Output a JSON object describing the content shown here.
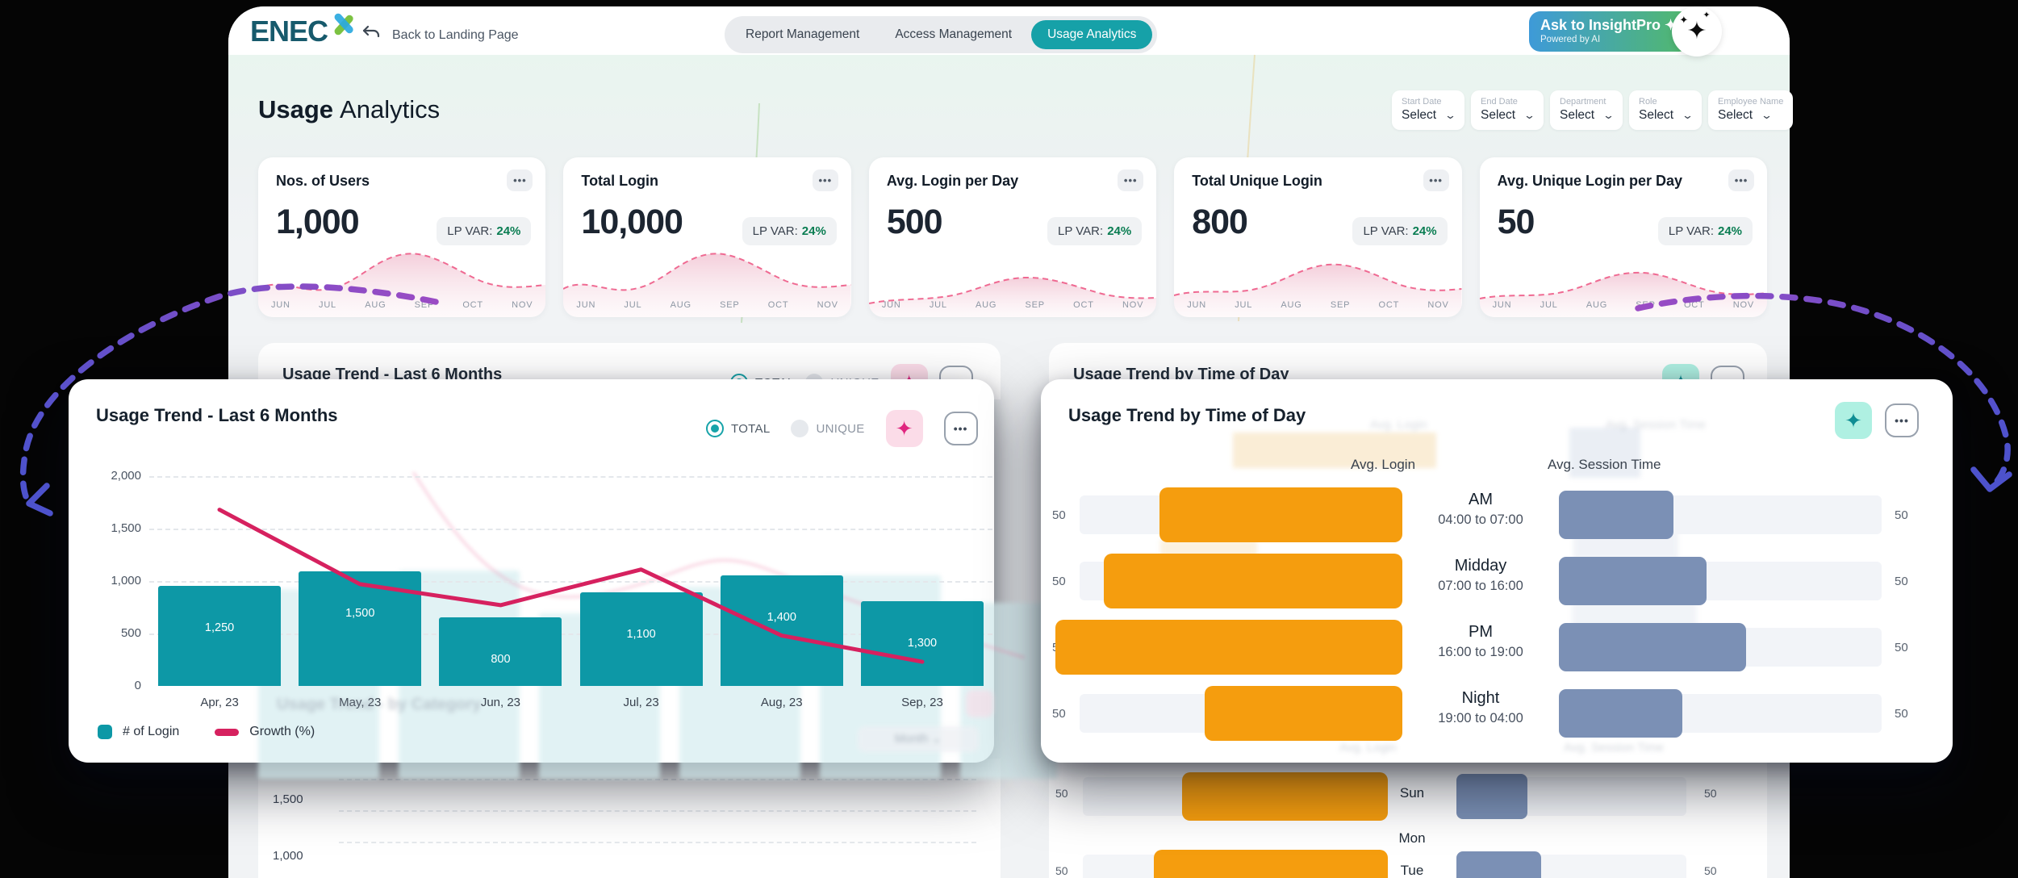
{
  "window": {
    "logo_text": "ENEC",
    "back_label": "Back to Landing Page"
  },
  "nav_tabs": [
    {
      "label": "Report Management",
      "active": false
    },
    {
      "label": "Access Management",
      "active": false
    },
    {
      "label": "Usage Analytics",
      "active": true
    }
  ],
  "ai_button": {
    "title": "Ask to InsightPro ✦",
    "subtitle": "Powered by AI"
  },
  "page_header": {
    "title_bold": "Usage",
    "title_regular": "Analytics"
  },
  "filters": [
    {
      "label": "Start Date",
      "value": "Select"
    },
    {
      "label": "End Date",
      "value": "Select"
    },
    {
      "label": "Department",
      "value": "Select"
    },
    {
      "label": "Role",
      "value": "Select"
    },
    {
      "label": "Employee Name",
      "value": "Select"
    }
  ],
  "kpi": {
    "lp_var_label": "LP VAR:",
    "lp_var_value": "24%",
    "ellipsis": "•••",
    "months": [
      "JUN",
      "JUL",
      "AUG",
      "SEP",
      "OCT",
      "NOV"
    ],
    "cards": [
      {
        "title": "Nos. of Users",
        "value": "1,000"
      },
      {
        "title": "Total Login",
        "value": "10,000"
      },
      {
        "title": "Avg. Login per Day",
        "value": "500"
      },
      {
        "title": "Total Unique Login",
        "value": "800"
      },
      {
        "title": "Avg. Unique Login per Day",
        "value": "50"
      }
    ]
  },
  "trend_popup": {
    "title": "Usage Trend - Last 6 Months",
    "radio_total": "TOTAL",
    "radio_unique": "UNIQUE",
    "sparkle_icon": "✦",
    "ellipsis": "•••",
    "y_ticks": [
      "2,000",
      "1,500",
      "1,000",
      "500",
      "0"
    ],
    "legend_bar": "# of Login",
    "legend_line": "Growth (%)"
  },
  "time_popup": {
    "title": "Usage Trend by Time of Day",
    "sparkle_icon": "✦",
    "ellipsis": "•••",
    "col_left": "Avg. Login",
    "col_right": "Avg. Session Time",
    "side_value": "50",
    "rows": [
      {
        "period": "AM",
        "range": "04:00 to 07:00"
      },
      {
        "period": "Midday",
        "range": "07:00 to 16:00"
      },
      {
        "period": "PM",
        "range": "16:00 to 19:00"
      },
      {
        "period": "Night",
        "range": "19:00 to 04:00"
      }
    ]
  },
  "background": {
    "row2_left_title": "Usage Trend - Last 6 Months",
    "row2_right_title": "Usage Trend by Time of Day",
    "row3_left_title": "Usage Trend - by Category",
    "month_dropdown": "Month ⌄",
    "y_labels": [
      "1,500",
      "1,000"
    ],
    "day_rows": [
      "Sun",
      "Mon",
      "Tue"
    ],
    "side_value": "50"
  },
  "chart_data": [
    {
      "type": "bar",
      "title": "Usage Trend - Last 6 Months",
      "categories": [
        "Apr, 23",
        "May, 23",
        "Jun, 23",
        "Jul, 23",
        "Aug, 23",
        "Sep, 23"
      ],
      "series": [
        {
          "name": "# of Login",
          "type": "bar",
          "color": "#0d98a6",
          "values": [
            1250,
            1500,
            800,
            1100,
            1400,
            1300
          ],
          "labels": [
            "1,250",
            "1,500",
            "800",
            "1,100",
            "1,400",
            "1,300"
          ],
          "bar_rendered_values": [
            950,
            1090,
            650,
            890,
            1050,
            810
          ]
        },
        {
          "name": "Growth (%)",
          "type": "line",
          "color": "#d6215f",
          "rendered_values": [
            1680,
            970,
            770,
            1110,
            480,
            230
          ]
        }
      ],
      "ylim": [
        0,
        2000
      ],
      "y_ticks": [
        0,
        500,
        1000,
        1500,
        2000
      ],
      "grid": "dashed-horizontal",
      "legend_position": "bottom-left"
    },
    {
      "type": "bar",
      "subtype": "bidirectional-horizontal",
      "title": "Usage Trend by Time of Day",
      "categories": [
        "AM 04:00 to 07:00",
        "Midday 07:00 to 16:00",
        "PM 16:00 to 19:00",
        "Night 19:00 to 04:00"
      ],
      "series": [
        {
          "name": "Avg. Login",
          "color": "#f59d0e",
          "direction": "left",
          "relative_lengths": [
            0.7,
            0.86,
            1.0,
            0.57
          ]
        },
        {
          "name": "Avg. Session Time",
          "color": "#7b90b5",
          "direction": "right",
          "relative_lengths": [
            0.61,
            0.79,
            1.0,
            0.66
          ]
        }
      ],
      "axis_value_left": "50",
      "axis_value_right": "50"
    },
    {
      "type": "area",
      "title": "KPI sparklines (JUN–NOV)",
      "categories": [
        "JUN",
        "JUL",
        "AUG",
        "SEP",
        "OCT",
        "NOV"
      ],
      "note": "pink dashed-outline area wave peaking near SEP, identical style on all five KPI cards"
    },
    {
      "type": "bar",
      "subtype": "bidirectional-horizontal",
      "title": "Usage Trend by Day of Week (partially visible)",
      "categories": [
        "Sun",
        "Mon",
        "Tue"
      ],
      "series": [
        {
          "name": "Avg. Login",
          "color": "#f59d0e",
          "relative_lengths": [
            0.58,
            0,
            0.67
          ]
        },
        {
          "name": "Avg. Session Time",
          "color": "#7b90b5",
          "relative_lengths": [
            0.38,
            0,
            0.46
          ]
        }
      ],
      "axis_value_left": "50",
      "axis_value_right": "50"
    }
  ]
}
